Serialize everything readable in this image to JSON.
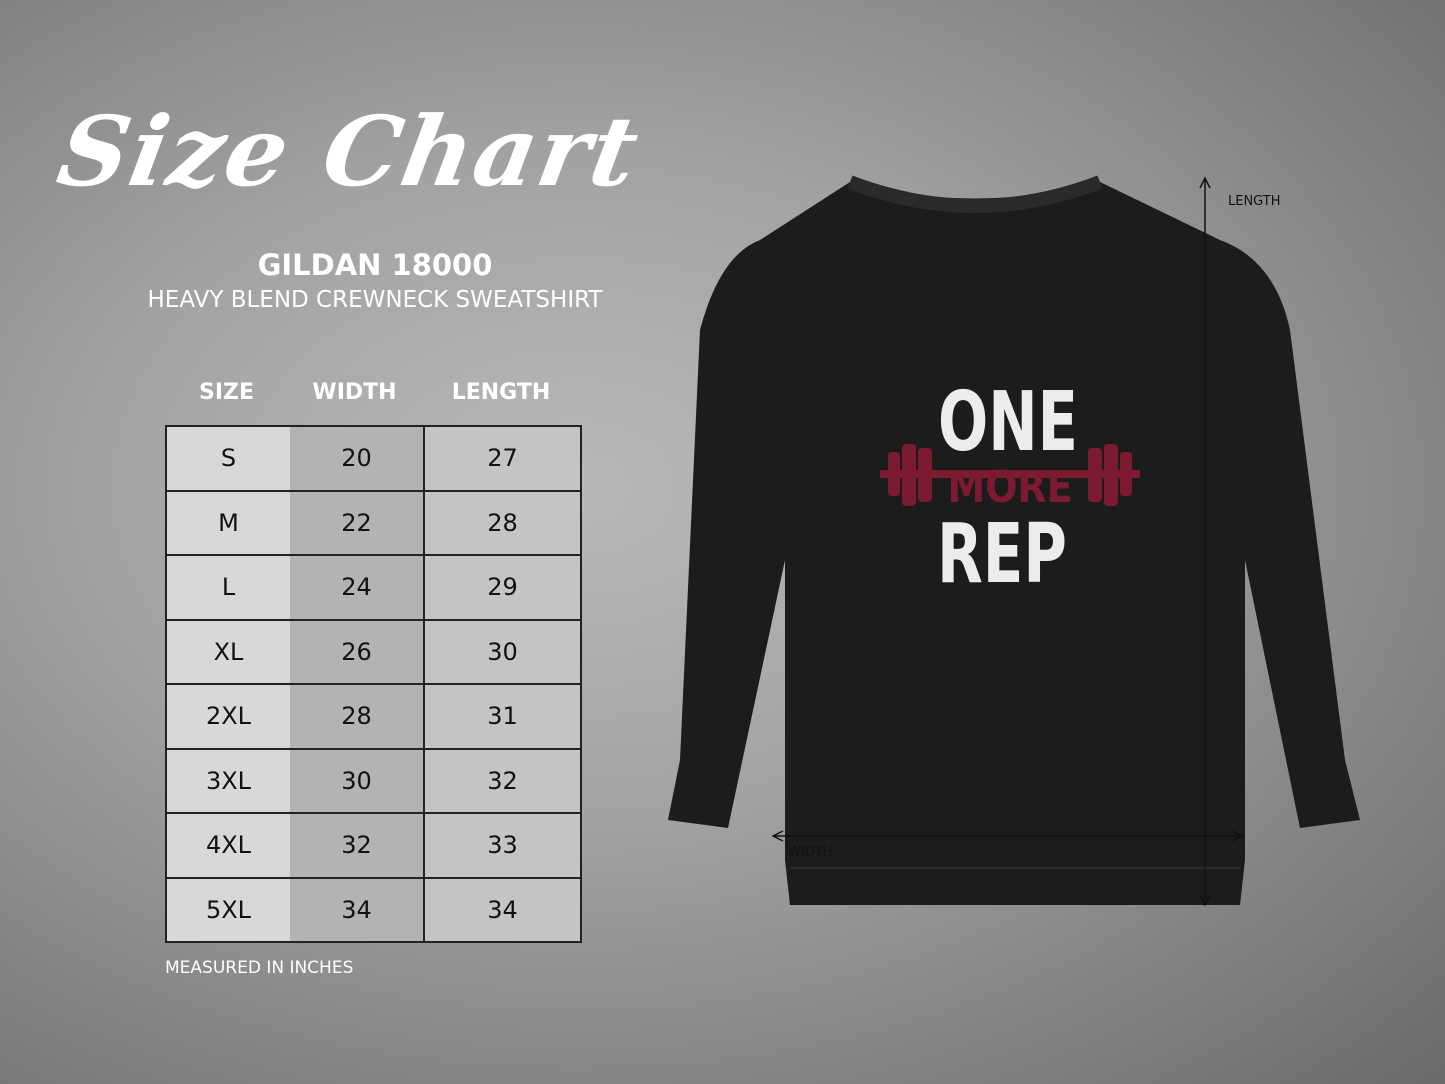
{
  "title": "Size Chart",
  "brand": "GILDAN 18000",
  "product": "HEAVY BLEND CREWNECK SWEATSHIRT",
  "table": {
    "headers": [
      "SIZE",
      "WIDTH",
      "LENGTH"
    ],
    "rows": [
      [
        "S",
        "20",
        "27"
      ],
      [
        "M",
        "22",
        "28"
      ],
      [
        "L",
        "24",
        "29"
      ],
      [
        "XL",
        "26",
        "30"
      ],
      [
        "2XL",
        "28",
        "31"
      ],
      [
        "3XL",
        "30",
        "32"
      ],
      [
        "4XL",
        "32",
        "33"
      ],
      [
        "5XL",
        "34",
        "34"
      ]
    ]
  },
  "note": "MEASURED IN INCHES",
  "garment": {
    "color": "#1c1c1c",
    "design_lines": [
      "ONE",
      "MORE",
      "REP"
    ],
    "design_colors": {
      "text": "#ececec",
      "accent": "#7c1a32"
    },
    "length_label": "LENGTH",
    "width_label": "WIDTH"
  }
}
